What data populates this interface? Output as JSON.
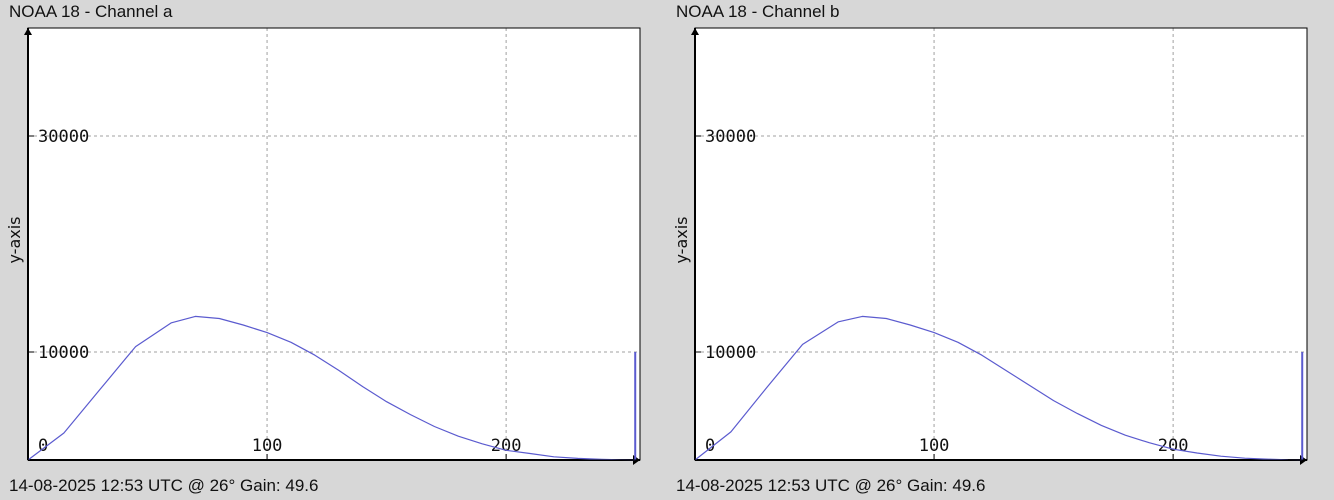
{
  "window": {
    "background": "#d7d7d7",
    "plot_background": "#ffffff",
    "grid_color": "#a0a0a0",
    "axis_color": "#000000",
    "line_color": "#5b5bcf"
  },
  "chart_data": [
    {
      "type": "line",
      "title": "NOAA 18 - Channel a",
      "footer": "14-08-2025 12:53 UTC @ 26° Gain: 49.6",
      "xlabel": "",
      "ylabel": "y-axis",
      "xlim": [
        0,
        256
      ],
      "ylim": [
        0,
        40000
      ],
      "x_ticks": [
        0,
        100,
        200
      ],
      "x_tick_labels": [
        "0",
        "100",
        "200"
      ],
      "y_ticks": [
        10000,
        30000
      ],
      "y_tick_labels": [
        "10000",
        "30000"
      ],
      "grid": true,
      "series": [
        {
          "points": [
            [
              0,
              0
            ],
            [
              15,
              2500
            ],
            [
              30,
              6500
            ],
            [
              45,
              10500
            ],
            [
              60,
              12700
            ],
            [
              70,
              13300
            ],
            [
              80,
              13100
            ],
            [
              90,
              12500
            ],
            [
              100,
              11800
            ],
            [
              110,
              10900
            ],
            [
              120,
              9700
            ],
            [
              130,
              8300
            ],
            [
              140,
              6800
            ],
            [
              150,
              5400
            ],
            [
              160,
              4200
            ],
            [
              170,
              3100
            ],
            [
              180,
              2200
            ],
            [
              190,
              1500
            ],
            [
              200,
              900
            ],
            [
              210,
              600
            ],
            [
              220,
              300
            ],
            [
              230,
              150
            ],
            [
              240,
              60
            ],
            [
              248,
              10
            ],
            [
              254,
              0
            ]
          ],
          "end_spike": [
            254,
            10000
          ]
        }
      ]
    },
    {
      "type": "line",
      "title": "NOAA 18 - Channel b",
      "footer": "14-08-2025 12:53 UTC @ 26° Gain: 49.6",
      "xlabel": "",
      "ylabel": "y-axis",
      "xlim": [
        0,
        256
      ],
      "ylim": [
        0,
        40000
      ],
      "x_ticks": [
        0,
        100,
        200
      ],
      "x_tick_labels": [
        "0",
        "100",
        "200"
      ],
      "y_ticks": [
        10000,
        30000
      ],
      "y_tick_labels": [
        "10000",
        "30000"
      ],
      "grid": true,
      "series": [
        {
          "points": [
            [
              0,
              0
            ],
            [
              15,
              2600
            ],
            [
              30,
              6700
            ],
            [
              45,
              10700
            ],
            [
              60,
              12800
            ],
            [
              70,
              13300
            ],
            [
              80,
              13100
            ],
            [
              90,
              12500
            ],
            [
              100,
              11800
            ],
            [
              110,
              10900
            ],
            [
              120,
              9700
            ],
            [
              130,
              8300
            ],
            [
              140,
              6900
            ],
            [
              150,
              5500
            ],
            [
              160,
              4300
            ],
            [
              170,
              3200
            ],
            [
              180,
              2300
            ],
            [
              190,
              1600
            ],
            [
              200,
              1000
            ],
            [
              210,
              650
            ],
            [
              220,
              350
            ],
            [
              230,
              170
            ],
            [
              240,
              70
            ],
            [
              248,
              10
            ],
            [
              254,
              0
            ]
          ],
          "end_spike": [
            254,
            10000
          ]
        }
      ]
    }
  ]
}
